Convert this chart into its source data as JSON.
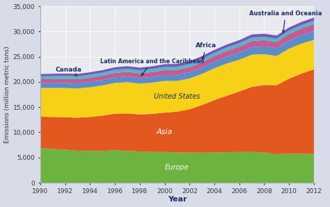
{
  "years": [
    1990,
    1991,
    1992,
    1993,
    1994,
    1995,
    1996,
    1997,
    1998,
    1999,
    2000,
    2001,
    2002,
    2003,
    2004,
    2005,
    2006,
    2007,
    2008,
    2009,
    2010,
    2011,
    2012
  ],
  "Europe": [
    6900,
    6700,
    6550,
    6350,
    6300,
    6300,
    6450,
    6300,
    6200,
    6100,
    6100,
    6000,
    5980,
    5950,
    6000,
    6050,
    6100,
    6100,
    6000,
    5650,
    5750,
    5750,
    5700
  ],
  "Asia": [
    6200,
    6350,
    6450,
    6550,
    6750,
    7000,
    7250,
    7450,
    7350,
    7550,
    7800,
    8100,
    8600,
    9450,
    10400,
    11200,
    12000,
    12900,
    13400,
    13700,
    14900,
    15900,
    16800
  ],
  "United_States": [
    5700,
    5750,
    5800,
    5800,
    5900,
    6000,
    6100,
    6200,
    6100,
    6200,
    6300,
    6100,
    6100,
    6200,
    6300,
    6400,
    6300,
    6400,
    6100,
    5800,
    5950,
    5950,
    5850
  ],
  "Latin_America": [
    950,
    970,
    990,
    1010,
    1040,
    1070,
    1100,
    1120,
    1120,
    1140,
    1170,
    1190,
    1210,
    1250,
    1320,
    1380,
    1440,
    1500,
    1540,
    1540,
    1610,
    1660,
    1710
  ],
  "Africa": [
    780,
    800,
    815,
    830,
    850,
    870,
    890,
    910,
    930,
    950,
    970,
    990,
    1015,
    1045,
    1085,
    1125,
    1160,
    1200,
    1235,
    1255,
    1310,
    1350,
    1400
  ],
  "Canada": [
    580,
    590,
    590,
    590,
    600,
    610,
    620,
    635,
    630,
    640,
    650,
    650,
    660,
    670,
    680,
    690,
    700,
    700,
    680,
    655,
    675,
    685,
    685
  ],
  "Australia": [
    440,
    450,
    455,
    460,
    468,
    478,
    488,
    498,
    503,
    510,
    520,
    530,
    540,
    550,
    562,
    574,
    586,
    598,
    600,
    594,
    600,
    605,
    610
  ],
  "colors": {
    "Europe": "#6db33f",
    "Asia": "#e2581e",
    "United_States": "#f7d118",
    "Latin_America": "#5b8dc8",
    "Africa": "#c45b96",
    "Canada": "#52b8c0",
    "Australia": "#7b52c0"
  },
  "ylabel": "Emissions (million metric tons)",
  "xlabel": "Year",
  "ylim": [
    0,
    35000
  ],
  "yticks": [
    0,
    5000,
    10000,
    15000,
    20000,
    25000,
    30000,
    35000
  ],
  "xticks": [
    1990,
    1992,
    1994,
    1996,
    1998,
    2000,
    2002,
    2004,
    2006,
    2008,
    2010,
    2012
  ],
  "bg_color": "#e8eaf0",
  "fig_color": "#d8dce8",
  "annotation_color": "#1a3060"
}
